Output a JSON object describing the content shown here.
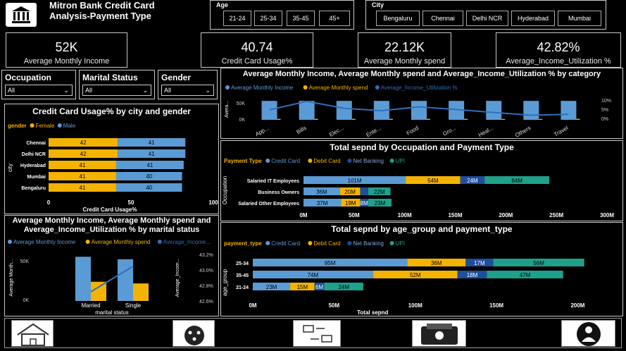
{
  "header": {
    "title": "Mitron Bank Credit Card Analysis-Payment Type"
  },
  "age_slicer": {
    "label": "Age",
    "options": [
      "21-24",
      "25-34",
      "35-45",
      "45+"
    ]
  },
  "city_slicer": {
    "label": "City",
    "options": [
      "Bengaluru",
      "Chennai",
      "Delhi NCR",
      "Hyderabad",
      "Mumbai"
    ]
  },
  "kpis": [
    {
      "value": "52K",
      "label": "Average  Monthly Income"
    },
    {
      "value": "40.74",
      "label": "Credit Card Usage%"
    },
    {
      "value": "22.12K",
      "label": "Average Monthly spend"
    },
    {
      "value": "42.82%",
      "label": "Average_Income_Utilization %"
    }
  ],
  "filters": [
    {
      "label": "Occupation",
      "value": "All"
    },
    {
      "label": "Marital Status",
      "value": "All"
    },
    {
      "label": "Gender",
      "value": "All"
    }
  ],
  "colors": {
    "blue": "#5b9bd5",
    "orange": "#f5b301",
    "teal": "#1fa08a",
    "navy": "#1f4e9c",
    "line": "#2f6fb8"
  },
  "chart_data": [
    {
      "type": "bar",
      "title": "Credit Card Usage% by city and gender",
      "legend_title": "gender",
      "categories": [
        "Chennai",
        "Delhi NCR",
        "Hyderabad",
        "Mumbai",
        "Bengaluru"
      ],
      "series": [
        {
          "name": "Female",
          "values": [
            42,
            42,
            41,
            41,
            41
          ]
        },
        {
          "name": "Male",
          "values": [
            41,
            41,
            41,
            40,
            40
          ]
        }
      ],
      "xlabel": "Credit Card Usage%",
      "ylabel": "city",
      "xticks": [
        "0",
        "50",
        "100"
      ],
      "xlim": [
        0,
        100
      ],
      "stacked": true,
      "orientation": "horizontal"
    },
    {
      "type": "bar",
      "title": "Average Monthly Income, Average Monthly spend and Average_Income_Utilization % by category",
      "categories": [
        "App...",
        "Bills",
        "Elec...",
        "Ente...",
        "Food",
        "Gro...",
        "Heal...",
        "Others",
        "Travel"
      ],
      "series": [
        {
          "name": "Average  Monthly Income",
          "values": [
            52000,
            52000,
            52000,
            52000,
            52000,
            52000,
            52000,
            52000,
            52000
          ]
        },
        {
          "name": "Average Monthly spend",
          "values": [
            2600,
            2600,
            2600,
            2600,
            2600,
            2500,
            2400,
            2300,
            2700
          ]
        },
        {
          "name": "Average_Income_Utilization %",
          "values": [
            5.0,
            9.3,
            5.8,
            4.6,
            6.5,
            5.2,
            3.7,
            2.3,
            2.8
          ],
          "axis": "right"
        }
      ],
      "ylabel": "Avera...",
      "yticks": [
        "0K",
        "50K"
      ],
      "y2ticks": [
        "0%",
        "5%",
        "10%"
      ],
      "ylim": [
        0,
        60000
      ],
      "y2lim": [
        0,
        11
      ]
    },
    {
      "type": "bar",
      "title": "Total sepnd by Occupation and Payment Type",
      "legend_title": "Payment Type",
      "categories": [
        "Salaried IT Employees",
        "Business Owners",
        "Salaried Other Employees"
      ],
      "series": [
        {
          "name": "Credit Card",
          "values": [
            101,
            36,
            37
          ],
          "labels": [
            "101M",
            "36M",
            "37M"
          ]
        },
        {
          "name": "Debit Card",
          "values": [
            54,
            20,
            19
          ],
          "labels": [
            "54M",
            "20M",
            "19M"
          ]
        },
        {
          "name": "Net Banking",
          "values": [
            24,
            8,
            8
          ],
          "labels": [
            "24M",
            "",
            "8M"
          ]
        },
        {
          "name": "UPI",
          "values": [
            64,
            22,
            23
          ],
          "labels": [
            "64M",
            "22M",
            "23M"
          ]
        }
      ],
      "ylabel": "Occupation",
      "xticks": [
        "0M",
        "50M",
        "100M",
        "150M",
        "200M",
        "250M",
        "300M"
      ],
      "xlim": [
        0,
        300
      ],
      "stacked": true,
      "orientation": "horizontal"
    },
    {
      "type": "bar",
      "title": "Average Monthly Income, Average Monthly spend and Average_Income_Utilization % by marital status",
      "categories": [
        "Married",
        "Single"
      ],
      "series": [
        {
          "name": "Average  Monthly Income",
          "values": [
            53000,
            50000
          ]
        },
        {
          "name": "Average Monthly spend",
          "values": [
            23000,
            21000
          ]
        },
        {
          "name": "Average_Income...",
          "values": [
            42.72,
            43.05
          ],
          "axis": "right"
        }
      ],
      "xlabel": "marital status",
      "ylabel": "Average Month...",
      "y2label": "Average_Incom...",
      "yticks": [
        "0K",
        "50K"
      ],
      "y2ticks": [
        "42.6%",
        "42.8%",
        "43.0%",
        "43.2%"
      ],
      "ylim": [
        0,
        60000
      ],
      "y2lim": [
        42.6,
        43.25
      ]
    },
    {
      "type": "bar",
      "title": "Total sepnd by age_group and payment_type",
      "legend_title": "payment_type",
      "categories": [
        "25-34",
        "35-45",
        "21-24"
      ],
      "series": [
        {
          "name": "Credit Card",
          "values": [
            95,
            74,
            23
          ],
          "labels": [
            "95M",
            "74M",
            "23M"
          ]
        },
        {
          "name": "Debit Card",
          "values": [
            36,
            52,
            15
          ],
          "labels": [
            "36M",
            "52M",
            "15M"
          ]
        },
        {
          "name": "Net Banking",
          "values": [
            17,
            18,
            6
          ],
          "labels": [
            "17M",
            "18M",
            "6M"
          ]
        },
        {
          "name": "UPI",
          "values": [
            56,
            47,
            24
          ],
          "labels": [
            "56M",
            "47M",
            "24M"
          ]
        }
      ],
      "xlabel": "Total sepnd",
      "ylabel": "age_group",
      "xticks": [
        "0M",
        "50M",
        "100M",
        "150M",
        "200M"
      ],
      "xlim": [
        0,
        205
      ],
      "stacked": true,
      "orientation": "horizontal"
    }
  ]
}
